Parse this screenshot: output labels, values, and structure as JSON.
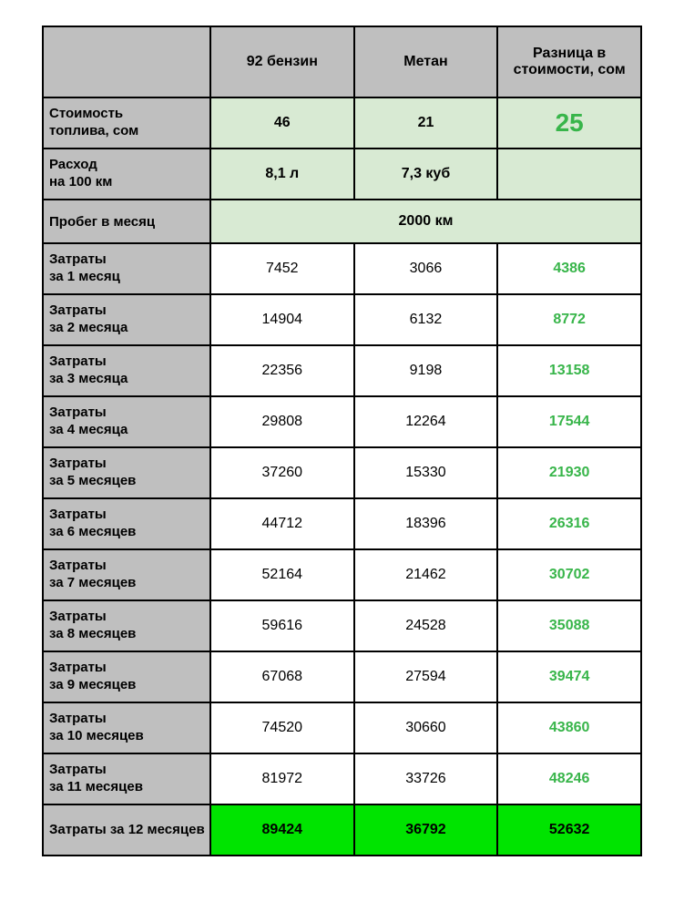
{
  "colors": {
    "header_bg": "#bfbfbf",
    "light_green_bg": "#d8ead3",
    "bright_green_bg": "#00e400",
    "green_text": "#38b54a",
    "border": "#000000",
    "white": "#ffffff"
  },
  "fonts": {
    "family": "Arial",
    "header_size_pt": 12,
    "body_size_pt": 12,
    "big_diff_size_pt": 21
  },
  "header": {
    "blank": "",
    "col_petrol": "92 бензин",
    "col_methane": "Метан",
    "col_diff": "Разница в стоимости, сом"
  },
  "price_row": {
    "label_main": "Стоимость",
    "label_sub": "топлива, сом",
    "petrol": "46",
    "methane": "21",
    "diff": "25"
  },
  "consumption_row": {
    "label_main": "Расход",
    "label_sub": "на 100 км",
    "petrol": "8,1 л",
    "methane": "7,3 куб",
    "diff": ""
  },
  "mileage_row": {
    "label": "Пробег в месяц",
    "value": "2000 км"
  },
  "months": [
    {
      "label_main": "Затраты",
      "label_sub": "за 1 месяц",
      "petrol": "7452",
      "methane": "3066",
      "diff": "4386"
    },
    {
      "label_main": "Затраты",
      "label_sub": "за 2 месяца",
      "petrol": "14904",
      "methane": "6132",
      "diff": "8772"
    },
    {
      "label_main": "Затраты",
      "label_sub": "за 3 месяца",
      "petrol": "22356",
      "methane": "9198",
      "diff": "13158"
    },
    {
      "label_main": "Затраты",
      "label_sub": "за 4 месяца",
      "petrol": "29808",
      "methane": "12264",
      "diff": "17544"
    },
    {
      "label_main": "Затраты",
      "label_sub": "за 5 месяцев",
      "petrol": "37260",
      "methane": "15330",
      "diff": "21930"
    },
    {
      "label_main": "Затраты",
      "label_sub": "за 6 месяцев",
      "petrol": "44712",
      "methane": "18396",
      "diff": "26316"
    },
    {
      "label_main": "Затраты",
      "label_sub": "за 7 месяцев",
      "petrol": "52164",
      "methane": "21462",
      "diff": "30702"
    },
    {
      "label_main": "Затраты",
      "label_sub": "за 8 месяцев",
      "petrol": "59616",
      "methane": "24528",
      "diff": "35088"
    },
    {
      "label_main": "Затраты",
      "label_sub": "за 9 месяцев",
      "petrol": "67068",
      "methane": "27594",
      "diff": "39474"
    },
    {
      "label_main": "Затраты",
      "label_sub": "за 10 месяцев",
      "petrol": "74520",
      "methane": "30660",
      "diff": "43860"
    },
    {
      "label_main": "Затраты",
      "label_sub": "за 11 месяцев",
      "petrol": "81972",
      "methane": "33726",
      "diff": "48246"
    }
  ],
  "total_row": {
    "label_main": "Затраты",
    "label_sub": "за 12 месяцев",
    "petrol": "89424",
    "methane": "36792",
    "diff": "52632"
  }
}
